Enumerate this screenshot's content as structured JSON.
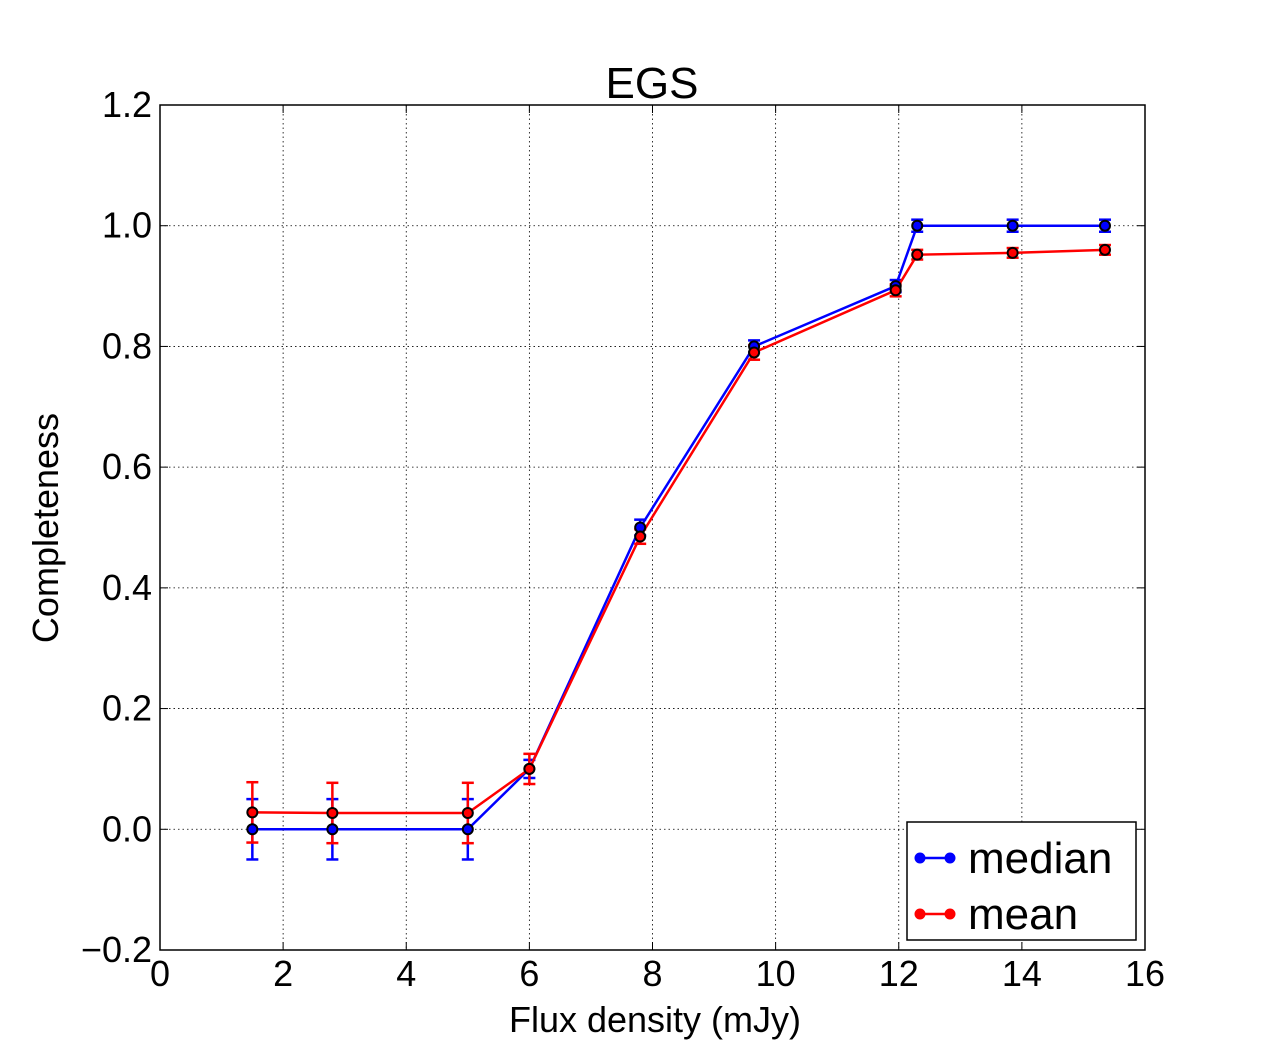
{
  "chart_data": {
    "type": "line",
    "title": "EGS",
    "xlabel": "Flux density (mJy)",
    "ylabel": "Completeness",
    "xlim": [
      0,
      16
    ],
    "ylim": [
      -0.2,
      1.2
    ],
    "xticks": [
      0,
      2,
      4,
      6,
      8,
      10,
      12,
      14,
      16
    ],
    "yticks": [
      -0.2,
      0.0,
      0.2,
      0.4,
      0.6,
      0.8,
      1.0,
      1.2
    ],
    "xtick_labels": [
      "0",
      "2",
      "4",
      "6",
      "8",
      "10",
      "12",
      "14",
      "16"
    ],
    "ytick_labels": [
      "−0.2",
      "0.0",
      "0.2",
      "0.4",
      "0.6",
      "0.8",
      "1.0",
      "1.2"
    ],
    "grid": true,
    "legend_position": "bottom-right",
    "series": [
      {
        "name": "median",
        "color": "#0000ff",
        "x": [
          1.5,
          2.8,
          5.0,
          6.0,
          7.8,
          9.65,
          11.95,
          12.3,
          13.85,
          15.35
        ],
        "y": [
          0.0,
          0.0,
          0.0,
          0.1,
          0.5,
          0.8,
          0.9,
          1.0,
          1.0,
          1.0
        ],
        "yerr": [
          0.05,
          0.05,
          0.05,
          0.015,
          0.013,
          0.01,
          0.01,
          0.01,
          0.01,
          0.01
        ]
      },
      {
        "name": "mean",
        "color": "#ff0000",
        "x": [
          1.5,
          2.8,
          5.0,
          6.0,
          7.8,
          9.65,
          11.95,
          12.3,
          13.85,
          15.35
        ],
        "y": [
          0.028,
          0.027,
          0.027,
          0.1,
          0.485,
          0.79,
          0.893,
          0.952,
          0.955,
          0.96
        ],
        "yerr": [
          0.05,
          0.05,
          0.05,
          0.025,
          0.012,
          0.012,
          0.01,
          0.008,
          0.008,
          0.008
        ]
      }
    ]
  }
}
